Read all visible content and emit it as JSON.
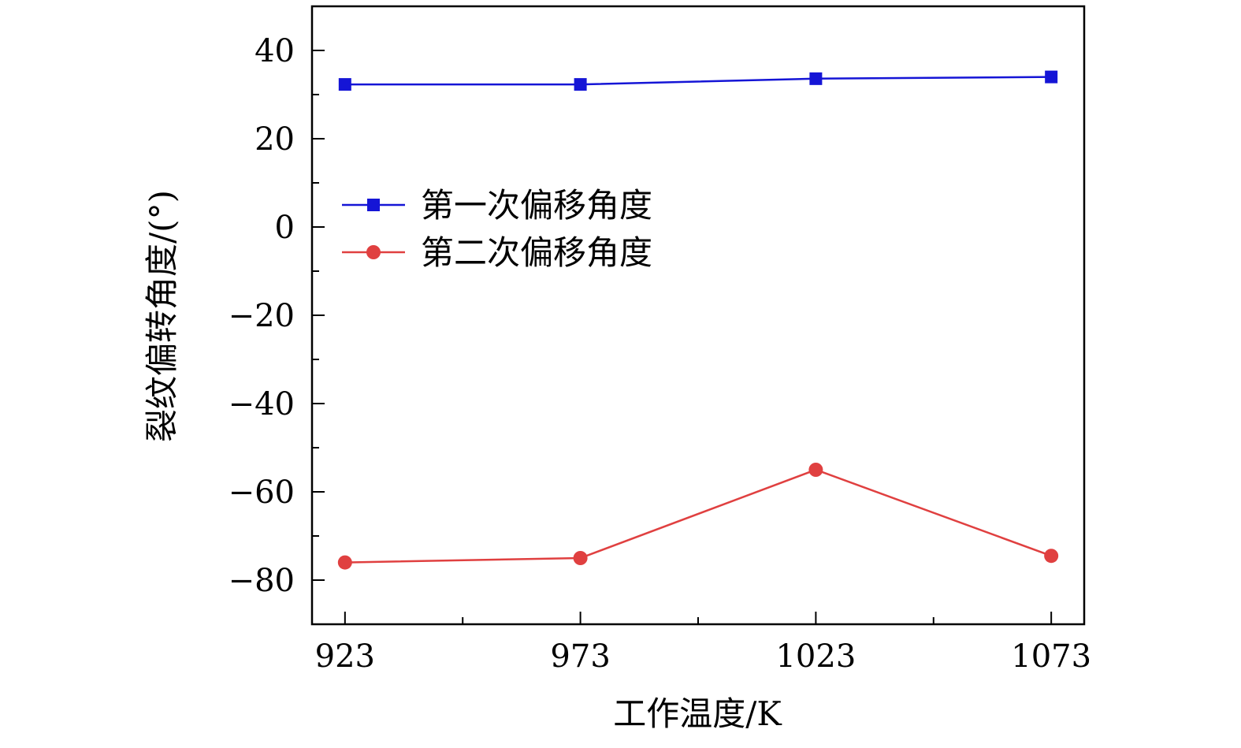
{
  "chart_data": {
    "type": "line",
    "title": "",
    "xlabel": "工作温度/K",
    "ylabel": "裂纹偏转角度/(°)",
    "x": [
      923,
      973,
      1023,
      1073
    ],
    "x_tick_labels": [
      "923",
      "973",
      "1023",
      "1073"
    ],
    "y_tick_labels": [
      "40",
      "20",
      "0",
      "−20",
      "−40",
      "−60",
      "−80"
    ],
    "y_ticks": [
      40,
      20,
      0,
      -20,
      -40,
      -60,
      -80
    ],
    "xlim": [
      916,
      1080
    ],
    "ylim": [
      -90,
      50
    ],
    "grid": false,
    "legend_position": "upper-left",
    "series": [
      {
        "name": "第一次偏移角度",
        "marker": "square",
        "color": "#1515d6",
        "values": [
          32.3,
          32.3,
          33.6,
          34.0
        ]
      },
      {
        "name": "第二次偏移角度",
        "marker": "circle",
        "color": "#e04040",
        "values": [
          -76.0,
          -75.0,
          -55.0,
          -74.5
        ]
      }
    ]
  }
}
